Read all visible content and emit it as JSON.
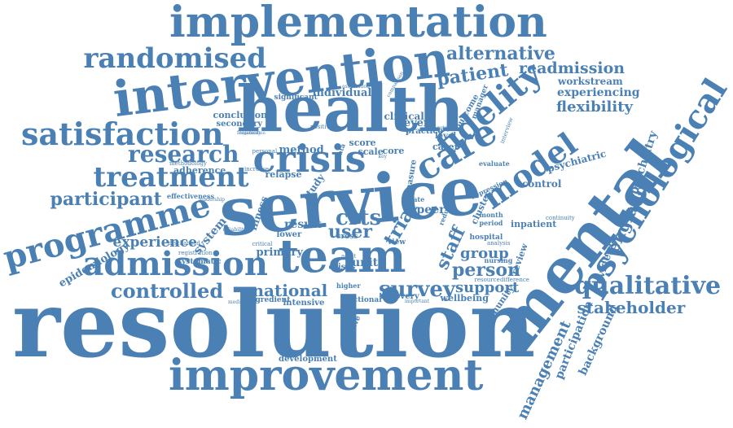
{
  "color": "#4a80b4",
  "words": [
    "resolution",
    "service",
    "mental",
    "health",
    "implementation",
    "intervention",
    "improvement",
    "team",
    "crisis",
    "care",
    "model",
    "fidelity",
    "satisfaction",
    "randomised",
    "admission",
    "treatment",
    "programme",
    "research",
    "psychological",
    "qualitative",
    "controlled",
    "survey",
    "participant",
    "stakeholder",
    "alternative",
    "readmission",
    "patient",
    "flexibility",
    "workstream",
    "experiencing",
    "england",
    "management",
    "national",
    "support",
    "group",
    "person",
    "staff",
    "user",
    "crts",
    "trial",
    "experience",
    "psychiatry",
    "evidence",
    "participation",
    "background",
    "epidemiology",
    "system",
    "primary",
    "unit",
    "peer",
    "result",
    "method",
    "study",
    "relapse",
    "illness",
    "individual",
    "conclusion",
    "secondary",
    "clinical",
    "score",
    "scale",
    "core",
    "level",
    "carer",
    "practice",
    "manager",
    "outcome",
    "evaluate",
    "control",
    "psychiatric",
    "inpatient",
    "review",
    "hospital",
    "community",
    "wellbeing",
    "recovery",
    "sectional",
    "intensive",
    "ingredient",
    "development",
    "effective",
    "adherence",
    "effectiveness",
    "measure",
    "cluster",
    "month",
    "period",
    "nursing",
    "resource",
    "difference",
    "analysis",
    "crises",
    "cross",
    "lower",
    "higher",
    "important",
    "view",
    "reduce",
    "depression",
    "interview",
    "continuity",
    "significant",
    "association",
    "positive",
    "personal",
    "increase",
    "data",
    "severe",
    "rate",
    "medication",
    "critical",
    "reliability",
    "systematic",
    "registration",
    "discharged",
    "leadership",
    "adult",
    "key",
    "comparison",
    "feasibility",
    "acute",
    "methodology",
    "organisation"
  ]
}
